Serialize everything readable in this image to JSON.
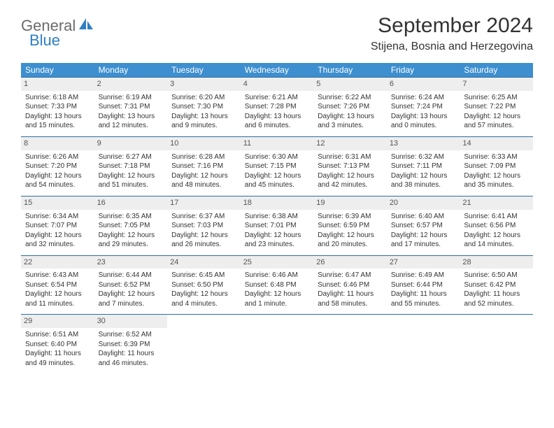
{
  "logo": {
    "part1": "General",
    "part2": "Blue"
  },
  "title": "September 2024",
  "location": "Stijena, Bosnia and Herzegovina",
  "colors": {
    "header_bg": "#3d8fcf",
    "header_text": "#ffffff",
    "daynum_bg": "#eeeeee",
    "row_border": "#2f6ea0",
    "logo_gray": "#6b6b6b",
    "logo_blue": "#2f7fc4",
    "text": "#333333",
    "page_bg": "#ffffff"
  },
  "typography": {
    "title_fontsize": 30,
    "location_fontsize": 16,
    "dayheader_fontsize": 12,
    "cell_fontsize": 10
  },
  "weekdays": [
    "Sunday",
    "Monday",
    "Tuesday",
    "Wednesday",
    "Thursday",
    "Friday",
    "Saturday"
  ],
  "weeks": [
    [
      {
        "n": "1",
        "sr": "Sunrise: 6:18 AM",
        "ss": "Sunset: 7:33 PM",
        "dl": "Daylight: 13 hours and 15 minutes."
      },
      {
        "n": "2",
        "sr": "Sunrise: 6:19 AM",
        "ss": "Sunset: 7:31 PM",
        "dl": "Daylight: 13 hours and 12 minutes."
      },
      {
        "n": "3",
        "sr": "Sunrise: 6:20 AM",
        "ss": "Sunset: 7:30 PM",
        "dl": "Daylight: 13 hours and 9 minutes."
      },
      {
        "n": "4",
        "sr": "Sunrise: 6:21 AM",
        "ss": "Sunset: 7:28 PM",
        "dl": "Daylight: 13 hours and 6 minutes."
      },
      {
        "n": "5",
        "sr": "Sunrise: 6:22 AM",
        "ss": "Sunset: 7:26 PM",
        "dl": "Daylight: 13 hours and 3 minutes."
      },
      {
        "n": "6",
        "sr": "Sunrise: 6:24 AM",
        "ss": "Sunset: 7:24 PM",
        "dl": "Daylight: 13 hours and 0 minutes."
      },
      {
        "n": "7",
        "sr": "Sunrise: 6:25 AM",
        "ss": "Sunset: 7:22 PM",
        "dl": "Daylight: 12 hours and 57 minutes."
      }
    ],
    [
      {
        "n": "8",
        "sr": "Sunrise: 6:26 AM",
        "ss": "Sunset: 7:20 PM",
        "dl": "Daylight: 12 hours and 54 minutes."
      },
      {
        "n": "9",
        "sr": "Sunrise: 6:27 AM",
        "ss": "Sunset: 7:18 PM",
        "dl": "Daylight: 12 hours and 51 minutes."
      },
      {
        "n": "10",
        "sr": "Sunrise: 6:28 AM",
        "ss": "Sunset: 7:16 PM",
        "dl": "Daylight: 12 hours and 48 minutes."
      },
      {
        "n": "11",
        "sr": "Sunrise: 6:30 AM",
        "ss": "Sunset: 7:15 PM",
        "dl": "Daylight: 12 hours and 45 minutes."
      },
      {
        "n": "12",
        "sr": "Sunrise: 6:31 AM",
        "ss": "Sunset: 7:13 PM",
        "dl": "Daylight: 12 hours and 42 minutes."
      },
      {
        "n": "13",
        "sr": "Sunrise: 6:32 AM",
        "ss": "Sunset: 7:11 PM",
        "dl": "Daylight: 12 hours and 38 minutes."
      },
      {
        "n": "14",
        "sr": "Sunrise: 6:33 AM",
        "ss": "Sunset: 7:09 PM",
        "dl": "Daylight: 12 hours and 35 minutes."
      }
    ],
    [
      {
        "n": "15",
        "sr": "Sunrise: 6:34 AM",
        "ss": "Sunset: 7:07 PM",
        "dl": "Daylight: 12 hours and 32 minutes."
      },
      {
        "n": "16",
        "sr": "Sunrise: 6:35 AM",
        "ss": "Sunset: 7:05 PM",
        "dl": "Daylight: 12 hours and 29 minutes."
      },
      {
        "n": "17",
        "sr": "Sunrise: 6:37 AM",
        "ss": "Sunset: 7:03 PM",
        "dl": "Daylight: 12 hours and 26 minutes."
      },
      {
        "n": "18",
        "sr": "Sunrise: 6:38 AM",
        "ss": "Sunset: 7:01 PM",
        "dl": "Daylight: 12 hours and 23 minutes."
      },
      {
        "n": "19",
        "sr": "Sunrise: 6:39 AM",
        "ss": "Sunset: 6:59 PM",
        "dl": "Daylight: 12 hours and 20 minutes."
      },
      {
        "n": "20",
        "sr": "Sunrise: 6:40 AM",
        "ss": "Sunset: 6:57 PM",
        "dl": "Daylight: 12 hours and 17 minutes."
      },
      {
        "n": "21",
        "sr": "Sunrise: 6:41 AM",
        "ss": "Sunset: 6:56 PM",
        "dl": "Daylight: 12 hours and 14 minutes."
      }
    ],
    [
      {
        "n": "22",
        "sr": "Sunrise: 6:43 AM",
        "ss": "Sunset: 6:54 PM",
        "dl": "Daylight: 12 hours and 11 minutes."
      },
      {
        "n": "23",
        "sr": "Sunrise: 6:44 AM",
        "ss": "Sunset: 6:52 PM",
        "dl": "Daylight: 12 hours and 7 minutes."
      },
      {
        "n": "24",
        "sr": "Sunrise: 6:45 AM",
        "ss": "Sunset: 6:50 PM",
        "dl": "Daylight: 12 hours and 4 minutes."
      },
      {
        "n": "25",
        "sr": "Sunrise: 6:46 AM",
        "ss": "Sunset: 6:48 PM",
        "dl": "Daylight: 12 hours and 1 minute."
      },
      {
        "n": "26",
        "sr": "Sunrise: 6:47 AM",
        "ss": "Sunset: 6:46 PM",
        "dl": "Daylight: 11 hours and 58 minutes."
      },
      {
        "n": "27",
        "sr": "Sunrise: 6:49 AM",
        "ss": "Sunset: 6:44 PM",
        "dl": "Daylight: 11 hours and 55 minutes."
      },
      {
        "n": "28",
        "sr": "Sunrise: 6:50 AM",
        "ss": "Sunset: 6:42 PM",
        "dl": "Daylight: 11 hours and 52 minutes."
      }
    ],
    [
      {
        "n": "29",
        "sr": "Sunrise: 6:51 AM",
        "ss": "Sunset: 6:40 PM",
        "dl": "Daylight: 11 hours and 49 minutes."
      },
      {
        "n": "30",
        "sr": "Sunrise: 6:52 AM",
        "ss": "Sunset: 6:39 PM",
        "dl": "Daylight: 11 hours and 46 minutes."
      },
      null,
      null,
      null,
      null,
      null
    ]
  ]
}
